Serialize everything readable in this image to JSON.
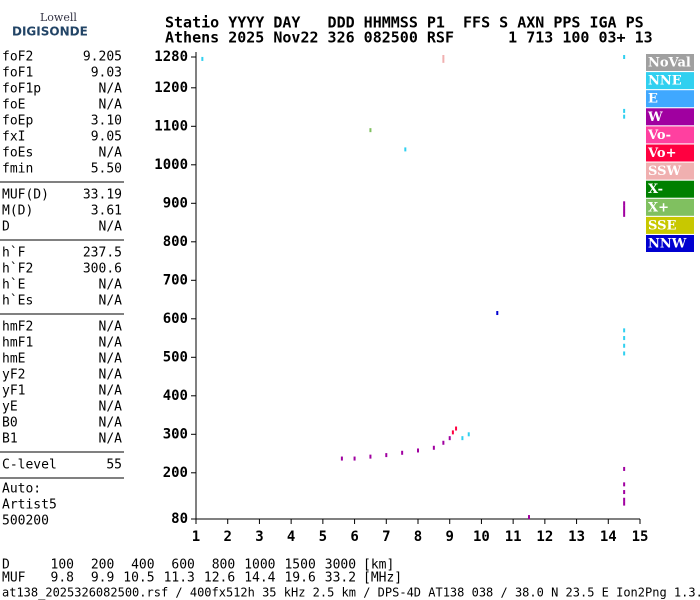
{
  "header": {
    "logo_top": "Lowell",
    "logo_bottom": "DIGISONDE",
    "line1": "Statio YYYY DAY   DDD HHMMSS P1  FFS S AXN PPS IGA PS",
    "line2": "Athens 2025 Nov22 326 082500 RSF      1 713 100 03+ 13"
  },
  "parameters": [
    [
      [
        "foF2",
        "9.205"
      ],
      [
        "foF1",
        "9.03"
      ],
      [
        "foF1p",
        "N/A"
      ],
      [
        "foE",
        "N/A"
      ],
      [
        "foEp",
        "3.10"
      ],
      [
        "fxI",
        "9.05"
      ],
      [
        "foEs",
        "N/A"
      ],
      [
        "fmin",
        "5.50"
      ]
    ],
    [
      [
        "MUF(D)",
        "33.19"
      ],
      [
        "M(D)",
        "3.61"
      ],
      [
        "D",
        "N/A"
      ]
    ],
    [
      [
        "h`F",
        "237.5"
      ],
      [
        "h`F2",
        "300.6"
      ],
      [
        "h`E",
        "N/A"
      ],
      [
        "h`Es",
        "N/A"
      ]
    ],
    [
      [
        "hmF2",
        "N/A"
      ],
      [
        "hmF1",
        "N/A"
      ],
      [
        "hmE",
        "N/A"
      ],
      [
        "yF2",
        "N/A"
      ],
      [
        "yF1",
        "N/A"
      ],
      [
        "yE",
        "N/A"
      ],
      [
        "B0",
        "N/A"
      ],
      [
        "B1",
        "N/A"
      ]
    ],
    [
      [
        "C-level",
        "55"
      ]
    ]
  ],
  "autoscaling": [
    "Auto:",
    "Artist5",
    "500200"
  ],
  "muf_table": {
    "rows": [
      {
        "label": "D",
        "values": [
          100,
          200,
          400,
          600,
          800,
          1000,
          1500,
          3000
        ],
        "unit": "[km]"
      },
      {
        "label": "MUF",
        "values": [
          9.8,
          9.9,
          10.5,
          11.3,
          12.6,
          14.4,
          19.6,
          33.2
        ],
        "unit": "[MHz]"
      }
    ]
  },
  "footer": "at138_2025326082500.rsf / 400fx512h 35 kHz 2.5 km / DPS-4D AT138 038 / 38.0 N 23.5 E Ion2Png 1.3.20",
  "chart_data": {
    "type": "scatter",
    "xlim": [
      1,
      15
    ],
    "xticks": [
      1,
      2,
      3,
      4,
      5,
      6,
      7,
      8,
      9,
      10,
      11,
      12,
      13,
      14,
      15
    ],
    "ylim": [
      80,
      1280
    ],
    "yticks": [
      80,
      200,
      300,
      400,
      500,
      600,
      700,
      800,
      900,
      1000,
      1100,
      1200,
      1280
    ],
    "series": [
      {
        "name": "NoVal",
        "color": "#a0a0a0",
        "x": [],
        "values": []
      },
      {
        "name": "NNE",
        "color": "#30d0f0",
        "x": [
          1.2,
          14.5,
          14.5,
          14.5,
          7.6,
          14.5,
          14.5,
          14.5,
          14.5,
          9.4,
          9.6
        ],
        "values": [
          1275,
          1280,
          1140,
          1125,
          1040,
          570,
          550,
          530,
          510,
          290,
          300
        ]
      },
      {
        "name": "E",
        "color": "#40a8ff",
        "x": [],
        "values": []
      },
      {
        "name": "W",
        "color": "#a000a0",
        "x": [
          5.6,
          6.0,
          6.5,
          7.0,
          7.5,
          8.0,
          8.5,
          8.8,
          9.0,
          14.5,
          14.5,
          14.5,
          14.5,
          14.5,
          14.5,
          14.5,
          14.5,
          14.5,
          11.5
        ],
        "values": [
          237,
          237,
          242,
          246,
          252,
          258,
          265,
          278,
          290,
          900,
          890,
          880,
          870,
          210,
          170,
          150,
          130,
          120,
          85
        ]
      },
      {
        "name": "Vo-",
        "color": "#ff40a0",
        "x": [],
        "values": []
      },
      {
        "name": "Vo+",
        "color": "#ff0040",
        "x": [
          9.1,
          9.2
        ],
        "values": [
          305,
          315
        ]
      },
      {
        "name": "SSW",
        "color": "#f0b0b0",
        "x": [
          8.8,
          8.8
        ],
        "values": [
          1280,
          1270
        ]
      },
      {
        "name": "X-",
        "color": "#008000",
        "x": [],
        "values": []
      },
      {
        "name": "X+",
        "color": "#80c060",
        "x": [
          6.5
        ],
        "values": [
          1090
        ]
      },
      {
        "name": "SSE",
        "color": "#c8c800",
        "x": [],
        "values": []
      },
      {
        "name": "NNW",
        "color": "#0000d0",
        "x": [
          10.5
        ],
        "values": [
          615
        ]
      }
    ]
  }
}
